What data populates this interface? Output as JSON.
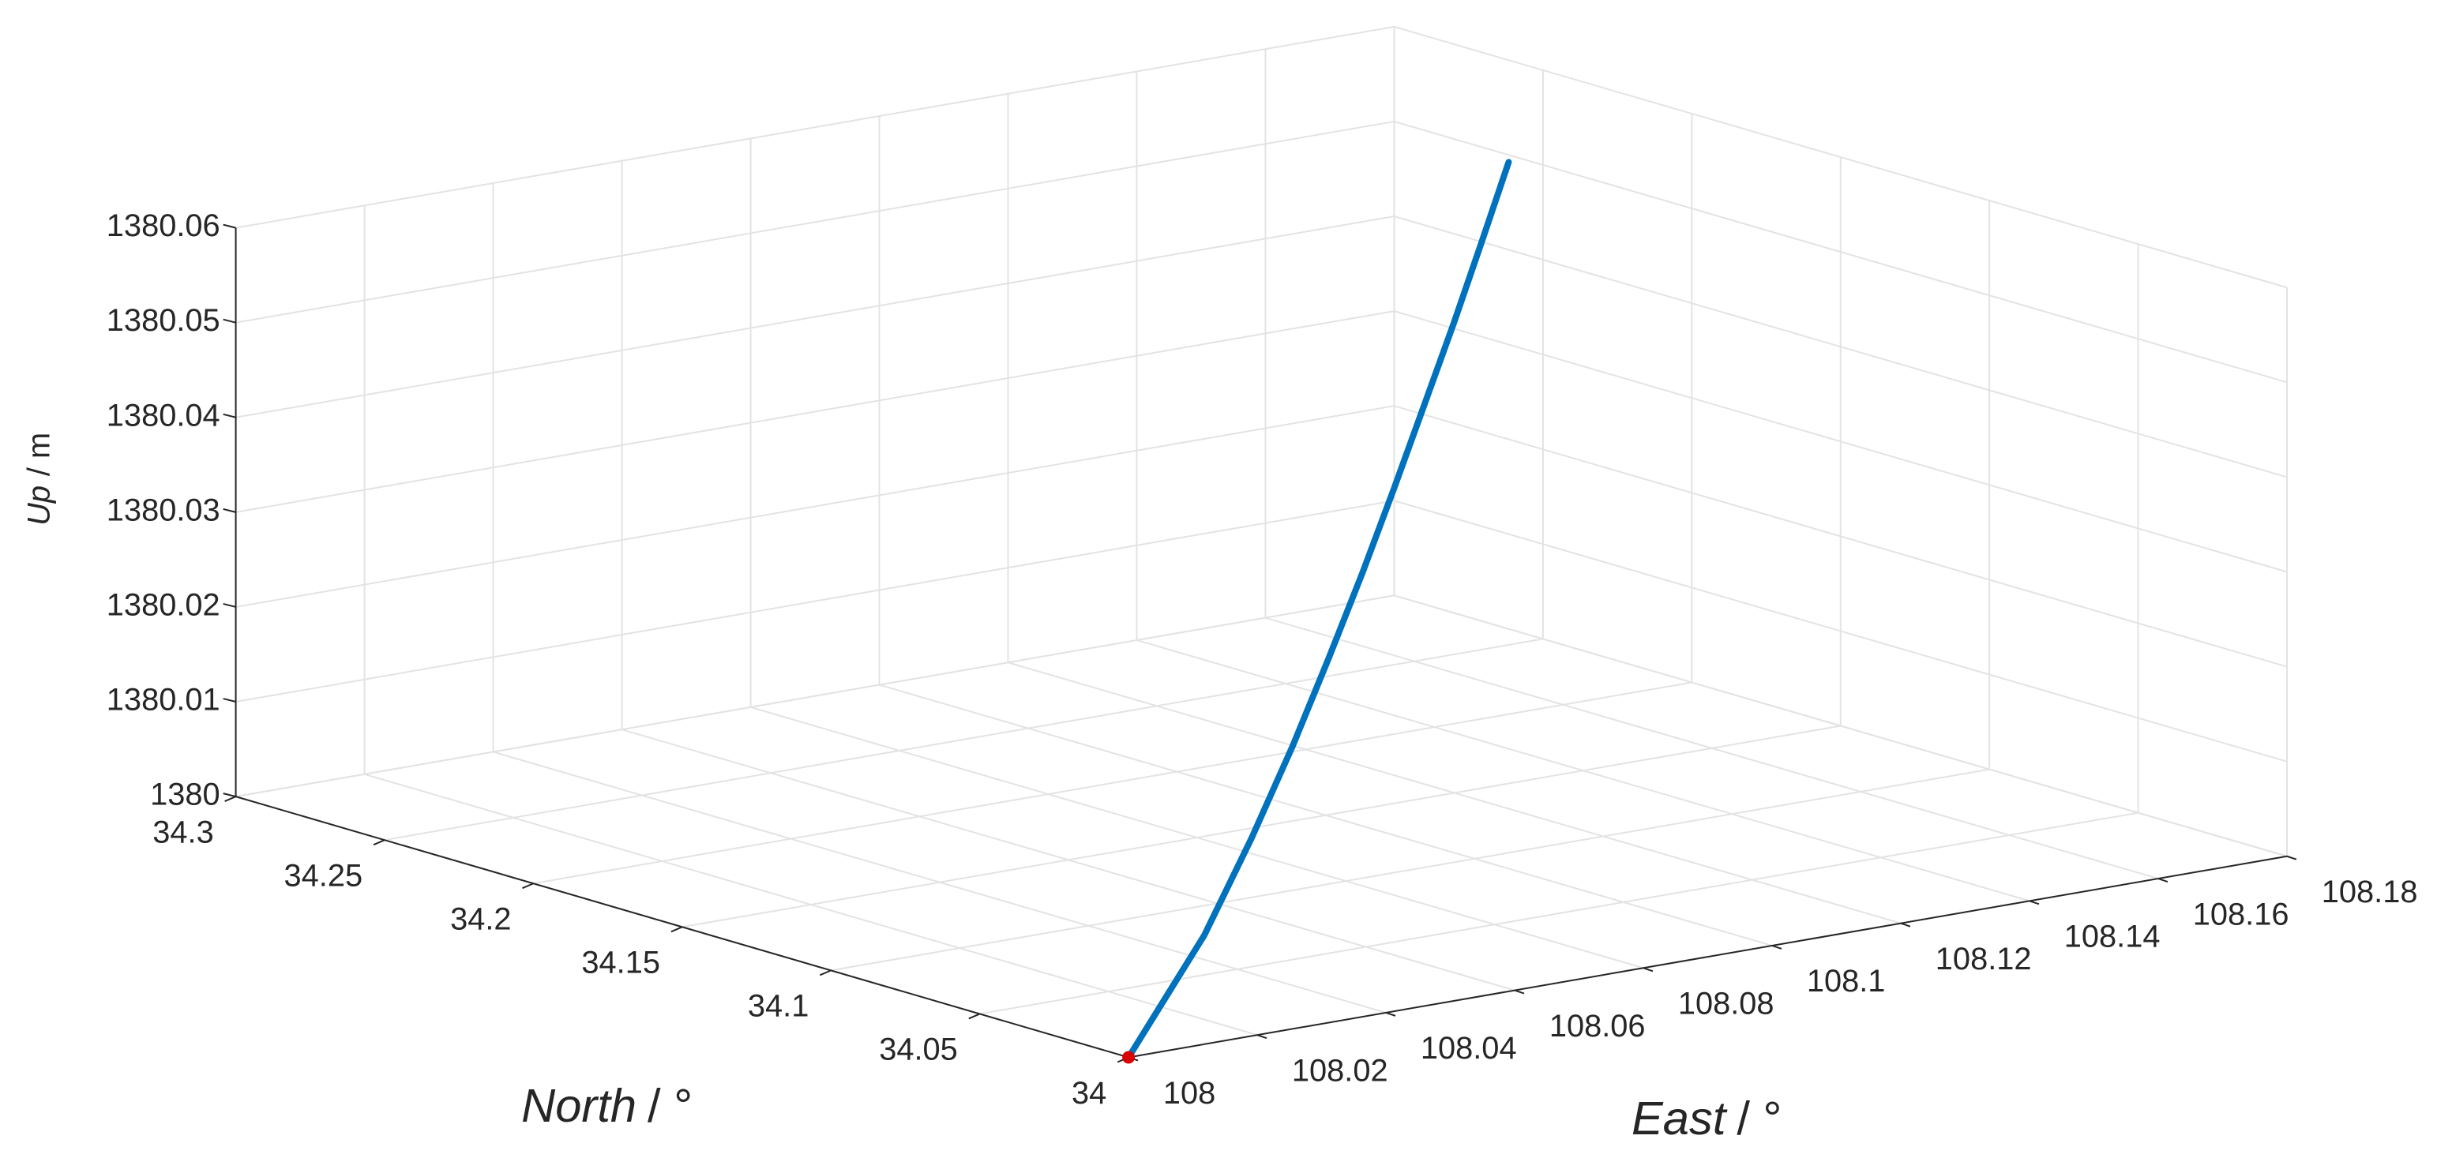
{
  "chart_data": {
    "type": "line3d",
    "xlabel": {
      "name": "East",
      "unit": "/ °"
    },
    "ylabel": {
      "name": "North",
      "unit": "/ °"
    },
    "zlabel": {
      "name": "Up",
      "unit": "/ m"
    },
    "xlim": [
      108,
      108.18
    ],
    "xticks": [
      108,
      108.02,
      108.04,
      108.06,
      108.08,
      108.1,
      108.12,
      108.14,
      108.16,
      108.18
    ],
    "ylim": [
      34,
      34.3
    ],
    "yticks": [
      34,
      34.05,
      34.1,
      34.15,
      34.2,
      34.25,
      34.3
    ],
    "zlim": [
      1380,
      1380.06
    ],
    "zticks": [
      1380,
      1380.01,
      1380.02,
      1380.03,
      1380.04,
      1380.05,
      1380.06
    ],
    "grid": true,
    "series": [
      {
        "color": "#0072bd",
        "x": [
          108,
          108.0291,
          108.0473,
          108.0629,
          108.0769,
          108.0899,
          108.1021,
          108.1137,
          108.1249,
          108.1356,
          108.146
        ],
        "y": [
          34,
          34.0375,
          34.0609,
          34.0809,
          34.099,
          34.1157,
          34.1315,
          34.1465,
          34.1608,
          34.1746,
          34.188
        ],
        "z": [
          1380,
          1380.006,
          1380.012,
          1380.018,
          1380.024,
          1380.03,
          1380.036,
          1380.042,
          1380.048,
          1380.054,
          1380.06
        ]
      },
      {
        "color": "#d90000",
        "x": [
          108
        ],
        "y": [
          34
        ],
        "z": [
          1380
        ]
      }
    ]
  }
}
